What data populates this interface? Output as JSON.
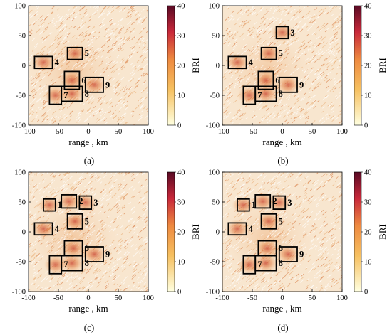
{
  "figure": {
    "panels": [
      {
        "caption": "(a)",
        "xlabel": "range , km",
        "colorbar_label": "BRI",
        "boxes": [
          {
            "label": "4",
            "x": [
              -90,
              -60
            ],
            "y": [
              -5,
              15
            ]
          },
          {
            "label": "5",
            "x": [
              -35,
              -10
            ],
            "y": [
              10,
              30
            ]
          },
          {
            "label": "6",
            "x": [
              -40,
              -15
            ],
            "y": [
              -40,
              -10
            ]
          },
          {
            "label": "7",
            "x": [
              -65,
              -45
            ],
            "y": [
              -65,
              -35
            ]
          },
          {
            "label": "8",
            "x": [
              -45,
              -10
            ],
            "y": [
              -60,
              -35
            ]
          },
          {
            "label": "9",
            "x": [
              -5,
              25
            ],
            "y": [
              -45,
              -20
            ]
          }
        ]
      },
      {
        "caption": "(b)",
        "xlabel": "range , km",
        "colorbar_label": "BRI",
        "boxes": [
          {
            "label": "3",
            "x": [
              -10,
              10
            ],
            "y": [
              45,
              65
            ]
          },
          {
            "label": "4",
            "x": [
              -90,
              -60
            ],
            "y": [
              -5,
              15
            ]
          },
          {
            "label": "5",
            "x": [
              -35,
              -10
            ],
            "y": [
              10,
              30
            ]
          },
          {
            "label": "6",
            "x": [
              -40,
              -15
            ],
            "y": [
              -40,
              -10
            ]
          },
          {
            "label": "7",
            "x": [
              -65,
              -45
            ],
            "y": [
              -65,
              -35
            ]
          },
          {
            "label": "8",
            "x": [
              -45,
              -10
            ],
            "y": [
              -60,
              -35
            ]
          },
          {
            "label": "9",
            "x": [
              -5,
              25
            ],
            "y": [
              -45,
              -20
            ]
          }
        ]
      },
      {
        "caption": "(c)",
        "xlabel": "range , km",
        "colorbar_label": "BRI",
        "boxes": [
          {
            "label": "1",
            "x": [
              -75,
              -55
            ],
            "y": [
              35,
              55
            ]
          },
          {
            "label": "2",
            "x": [
              -45,
              -20
            ],
            "y": [
              40,
              62
            ]
          },
          {
            "label": "3",
            "x": [
              -15,
              5
            ],
            "y": [
              38,
              60
            ]
          },
          {
            "label": "4",
            "x": [
              -90,
              -60
            ],
            "y": [
              -5,
              15
            ]
          },
          {
            "label": "5",
            "x": [
              -35,
              -10
            ],
            "y": [
              5,
              30
            ]
          },
          {
            "label": "6",
            "x": [
              -40,
              -10
            ],
            "y": [
              -40,
              -15
            ]
          },
          {
            "label": "7",
            "x": [
              -65,
              -45
            ],
            "y": [
              -70,
              -40
            ]
          },
          {
            "label": "8",
            "x": [
              -45,
              -10
            ],
            "y": [
              -65,
              -40
            ]
          },
          {
            "label": "9",
            "x": [
              -5,
              25
            ],
            "y": [
              -50,
              -25
            ]
          }
        ]
      },
      {
        "caption": "(d)",
        "xlabel": "range , km",
        "colorbar_label": "BRI",
        "boxes": [
          {
            "label": "1",
            "x": [
              -75,
              -55
            ],
            "y": [
              35,
              55
            ]
          },
          {
            "label": "2",
            "x": [
              -45,
              -20
            ],
            "y": [
              40,
              62
            ]
          },
          {
            "label": "3",
            "x": [
              -15,
              5
            ],
            "y": [
              38,
              60
            ]
          },
          {
            "label": "4",
            "x": [
              -90,
              -60
            ],
            "y": [
              -5,
              15
            ]
          },
          {
            "label": "5",
            "x": [
              -35,
              -10
            ],
            "y": [
              5,
              30
            ]
          },
          {
            "label": "6",
            "x": [
              -40,
              -10
            ],
            "y": [
              -40,
              -15
            ]
          },
          {
            "label": "7",
            "x": [
              -65,
              -45
            ],
            "y": [
              -70,
              -40
            ]
          },
          {
            "label": "8",
            "x": [
              -45,
              -10
            ],
            "y": [
              -65,
              -40
            ]
          },
          {
            "label": "9",
            "x": [
              -5,
              25
            ],
            "y": [
              -50,
              -25
            ]
          }
        ]
      }
    ]
  },
  "chart_data": [
    {
      "type": "heatmap",
      "title": "",
      "xlabel": "range , km",
      "ylabel": "",
      "xlim": [
        -100,
        100
      ],
      "ylim": [
        -100,
        100
      ],
      "xticks": [
        -100,
        -50,
        0,
        50,
        100
      ],
      "yticks": [
        -100,
        -50,
        0,
        50,
        100
      ],
      "colorbar": {
        "label": "BRI",
        "range": [
          0,
          40
        ],
        "ticks": [
          0,
          10,
          20,
          30,
          40
        ]
      }
    },
    {
      "type": "heatmap",
      "title": "",
      "xlabel": "range , km",
      "ylabel": "",
      "xlim": [
        -100,
        100
      ],
      "ylim": [
        -100,
        100
      ],
      "xticks": [
        -100,
        -50,
        0,
        50,
        100
      ],
      "yticks": [
        -100,
        -50,
        0,
        50,
        100
      ],
      "colorbar": {
        "label": "BRI",
        "range": [
          0,
          40
        ],
        "ticks": [
          0,
          10,
          20,
          30,
          40
        ]
      }
    },
    {
      "type": "heatmap",
      "title": "",
      "xlabel": "range , km",
      "ylabel": "",
      "xlim": [
        -100,
        100
      ],
      "ylim": [
        -100,
        100
      ],
      "xticks": [
        -100,
        -50,
        0,
        50,
        100
      ],
      "yticks": [
        -100,
        -50,
        0,
        50,
        100
      ],
      "colorbar": {
        "label": "BRI",
        "range": [
          0,
          40
        ],
        "ticks": [
          0,
          10,
          20,
          30,
          40
        ]
      }
    },
    {
      "type": "heatmap",
      "title": "",
      "xlabel": "range , km",
      "ylabel": "",
      "xlim": [
        -100,
        100
      ],
      "ylim": [
        -100,
        100
      ],
      "xticks": [
        -100,
        -50,
        0,
        50,
        100
      ],
      "yticks": [
        -100,
        -50,
        0,
        50,
        100
      ],
      "colorbar": {
        "label": "BRI",
        "range": [
          0,
          40
        ],
        "ticks": [
          0,
          10,
          20,
          30,
          40
        ]
      }
    }
  ],
  "colors": {
    "low": "#fbf8d8",
    "mid": "#f0a050",
    "high": "#e03a2a",
    "max": "#6a0a20"
  }
}
